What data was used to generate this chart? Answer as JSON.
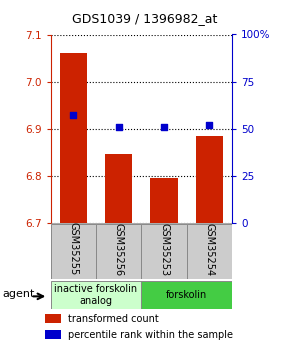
{
  "title": "GDS1039 / 1396982_at",
  "samples": [
    "GSM35255",
    "GSM35256",
    "GSM35253",
    "GSM35254"
  ],
  "bar_values": [
    7.06,
    6.845,
    6.795,
    6.885
  ],
  "percentile_values": [
    57,
    51,
    51,
    52
  ],
  "bar_color": "#cc2200",
  "dot_color": "#0000cc",
  "ylim_left": [
    6.7,
    7.1
  ],
  "ylim_right": [
    0,
    100
  ],
  "yticks_left": [
    6.7,
    6.8,
    6.9,
    7.0,
    7.1
  ],
  "yticks_right": [
    0,
    25,
    50,
    75,
    100
  ],
  "ytick_labels_right": [
    "0",
    "25",
    "50",
    "75",
    "100%"
  ],
  "groups": [
    {
      "label": "inactive forskolin\nanalog",
      "color": "#ccffcc",
      "samples": [
        0,
        1
      ]
    },
    {
      "label": "forskolin",
      "color": "#44cc44",
      "samples": [
        2,
        3
      ]
    }
  ],
  "legend_items": [
    {
      "color": "#cc2200",
      "label": "transformed count"
    },
    {
      "color": "#0000cc",
      "label": "percentile rank within the sample"
    }
  ],
  "agent_label": "agent",
  "bar_width": 0.6,
  "background_color": "#ffffff",
  "tick_color_left": "#cc2200",
  "tick_color_right": "#0000cc",
  "sample_bg_color": "#cccccc",
  "sample_border_color": "#888888"
}
